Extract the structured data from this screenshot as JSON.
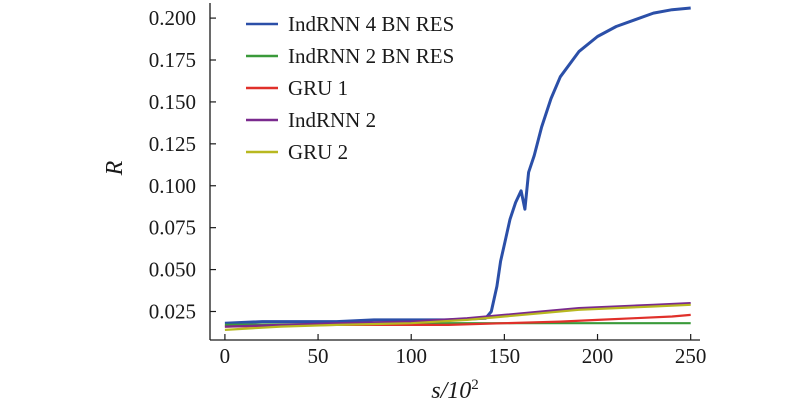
{
  "chart_data": {
    "type": "line",
    "xlabel": "s/10",
    "xlabel_superscript": "2",
    "ylabel": "R",
    "xlim": [
      -8,
      255
    ],
    "ylim": [
      0.008,
      0.209
    ],
    "x_ticks": [
      0,
      50,
      100,
      150,
      200,
      250
    ],
    "x_tick_labels": [
      "0",
      "50",
      "100",
      "150",
      "200",
      "250"
    ],
    "y_ticks": [
      0.025,
      0.05,
      0.075,
      0.1,
      0.125,
      0.15,
      0.175,
      0.2
    ],
    "y_tick_labels": [
      "0.025",
      "0.050",
      "0.075",
      "0.100",
      "0.125",
      "0.150",
      "0.175",
      "0.200"
    ],
    "grid": false,
    "legend_position": "top-left",
    "series": [
      {
        "name": "IndRNN 4 BN RES",
        "color": "#2b4fa8",
        "x": [
          0,
          20,
          40,
          60,
          80,
          100,
          120,
          140,
          143,
          146,
          148,
          150,
          153,
          156,
          159,
          161,
          163,
          166,
          170,
          175,
          180,
          190,
          200,
          210,
          220,
          230,
          240,
          250
        ],
        "y": [
          0.018,
          0.019,
          0.019,
          0.019,
          0.02,
          0.02,
          0.02,
          0.021,
          0.025,
          0.04,
          0.055,
          0.065,
          0.08,
          0.09,
          0.097,
          0.086,
          0.108,
          0.118,
          0.135,
          0.152,
          0.165,
          0.18,
          0.189,
          0.195,
          0.199,
          0.203,
          0.205,
          0.206
        ]
      },
      {
        "name": "IndRNN 2 BN RES",
        "color": "#3a9a3a",
        "x": [
          0,
          50,
          100,
          150,
          200,
          250
        ],
        "y": [
          0.017,
          0.0175,
          0.018,
          0.018,
          0.018,
          0.018
        ]
      },
      {
        "name": "GRU 1",
        "color": "#e0302a",
        "x": [
          0,
          30,
          60,
          90,
          120,
          150,
          180,
          200,
          220,
          240,
          250
        ],
        "y": [
          0.016,
          0.0165,
          0.017,
          0.017,
          0.017,
          0.018,
          0.019,
          0.02,
          0.021,
          0.022,
          0.023
        ]
      },
      {
        "name": "IndRNN 2",
        "color": "#7a2a8e",
        "x": [
          0,
          30,
          60,
          100,
          130,
          150,
          170,
          190,
          210,
          230,
          250
        ],
        "y": [
          0.016,
          0.017,
          0.018,
          0.019,
          0.021,
          0.023,
          0.025,
          0.027,
          0.028,
          0.029,
          0.03
        ]
      },
      {
        "name": "GRU 2",
        "color": "#b8b820",
        "x": [
          0,
          30,
          60,
          100,
          130,
          150,
          170,
          190,
          210,
          230,
          250
        ],
        "y": [
          0.014,
          0.016,
          0.017,
          0.018,
          0.02,
          0.022,
          0.024,
          0.026,
          0.027,
          0.028,
          0.029
        ]
      }
    ]
  }
}
